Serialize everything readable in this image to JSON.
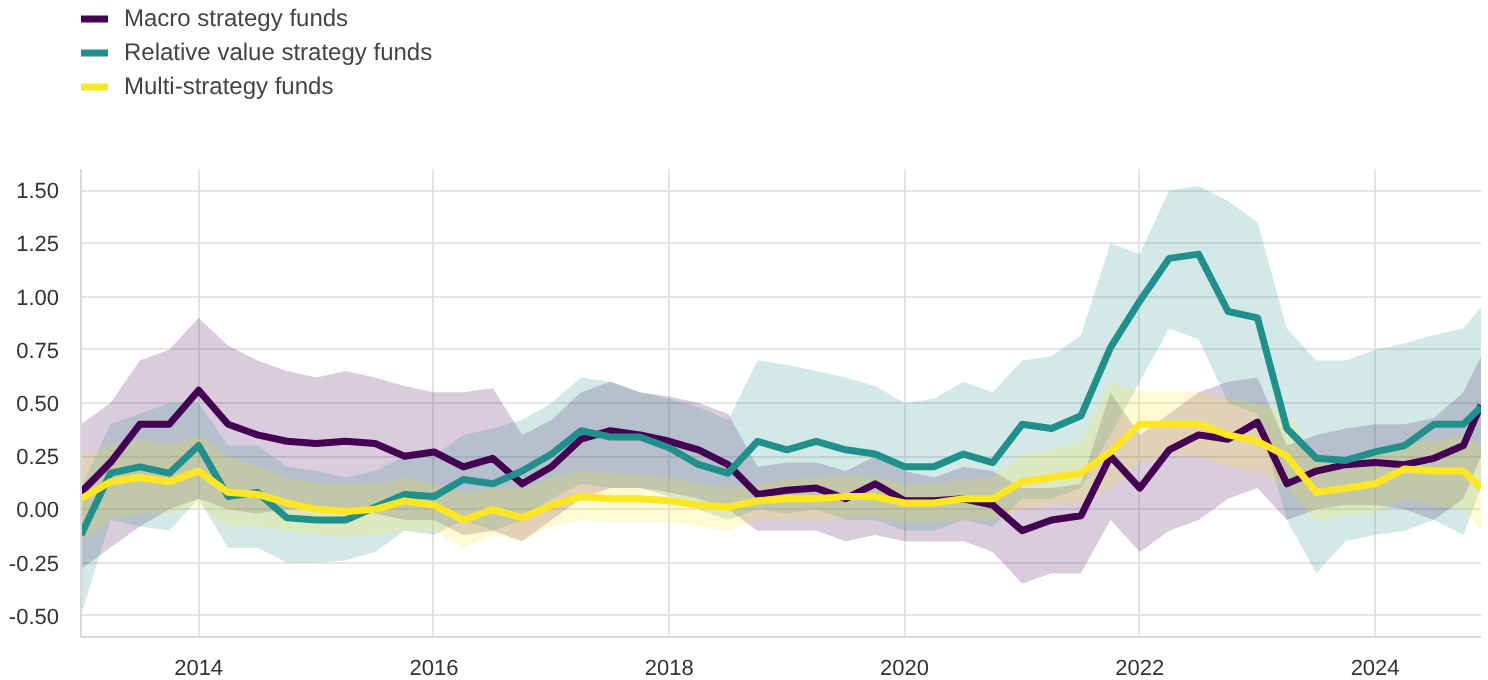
{
  "chart_data": {
    "type": "line",
    "x": [
      2013.0,
      2013.25,
      2013.5,
      2013.75,
      2014.0,
      2014.25,
      2014.5,
      2014.75,
      2015.0,
      2015.25,
      2015.5,
      2015.75,
      2016.0,
      2016.25,
      2016.5,
      2016.75,
      2017.0,
      2017.25,
      2017.5,
      2017.75,
      2018.0,
      2018.25,
      2018.5,
      2018.75,
      2019.0,
      2019.25,
      2019.5,
      2019.75,
      2020.0,
      2020.25,
      2020.5,
      2020.75,
      2021.0,
      2021.25,
      2021.5,
      2021.75,
      2022.0,
      2022.25,
      2022.5,
      2022.75,
      2023.0,
      2023.25,
      2023.5,
      2023.75,
      2024.0,
      2024.25,
      2024.5,
      2024.75,
      2024.9
    ],
    "series": [
      {
        "name": "Macro strategy funds",
        "color": "#440154",
        "values": [
          0.08,
          0.22,
          0.4,
          0.4,
          0.56,
          0.4,
          0.35,
          0.32,
          0.31,
          0.32,
          0.31,
          0.25,
          0.27,
          0.2,
          0.24,
          0.12,
          0.2,
          0.33,
          0.37,
          0.35,
          0.32,
          0.28,
          0.21,
          0.07,
          0.09,
          0.1,
          0.05,
          0.12,
          0.04,
          0.04,
          0.05,
          0.02,
          -0.1,
          -0.05,
          -0.03,
          0.25,
          0.1,
          0.28,
          0.35,
          0.33,
          0.41,
          0.12,
          0.18,
          0.21,
          0.22,
          0.21,
          0.24,
          0.3,
          0.49
        ],
        "upper": [
          0.4,
          0.5,
          0.7,
          0.75,
          0.9,
          0.77,
          0.7,
          0.65,
          0.62,
          0.65,
          0.62,
          0.58,
          0.55,
          0.55,
          0.57,
          0.35,
          0.42,
          0.55,
          0.6,
          0.55,
          0.53,
          0.5,
          0.45,
          0.2,
          0.22,
          0.22,
          0.18,
          0.25,
          0.18,
          0.15,
          0.2,
          0.18,
          0.1,
          0.1,
          0.12,
          0.55,
          0.35,
          0.45,
          0.55,
          0.6,
          0.62,
          0.3,
          0.35,
          0.38,
          0.4,
          0.4,
          0.43,
          0.55,
          0.72
        ],
        "lower": [
          -0.28,
          -0.18,
          -0.08,
          0.0,
          0.05,
          0.0,
          -0.02,
          0.0,
          0.0,
          0.0,
          -0.02,
          -0.05,
          -0.05,
          -0.12,
          -0.1,
          -0.15,
          -0.05,
          0.05,
          0.1,
          0.1,
          0.08,
          0.05,
          0.0,
          -0.1,
          -0.1,
          -0.1,
          -0.15,
          -0.12,
          -0.15,
          -0.15,
          -0.15,
          -0.2,
          -0.35,
          -0.3,
          -0.3,
          -0.05,
          -0.2,
          -0.1,
          -0.05,
          0.05,
          0.1,
          -0.05,
          0.0,
          0.02,
          0.02,
          0.0,
          -0.05,
          0.05,
          0.25
        ]
      },
      {
        "name": "Relative value strategy funds",
        "color": "#21908d",
        "values": [
          -0.12,
          0.17,
          0.2,
          0.17,
          0.3,
          0.06,
          0.08,
          -0.04,
          -0.05,
          -0.05,
          0.01,
          0.07,
          0.06,
          0.14,
          0.12,
          0.18,
          0.26,
          0.37,
          0.34,
          0.34,
          0.29,
          0.21,
          0.17,
          0.32,
          0.28,
          0.32,
          0.28,
          0.26,
          0.2,
          0.2,
          0.26,
          0.22,
          0.4,
          0.38,
          0.44,
          0.76,
          0.98,
          1.18,
          1.2,
          0.93,
          0.9,
          0.38,
          0.24,
          0.23,
          0.27,
          0.3,
          0.4,
          0.4,
          0.48
        ],
        "upper": [
          0.1,
          0.4,
          0.45,
          0.5,
          0.5,
          0.3,
          0.3,
          0.2,
          0.18,
          0.15,
          0.18,
          0.25,
          0.25,
          0.35,
          0.38,
          0.42,
          0.5,
          0.62,
          0.6,
          0.55,
          0.52,
          0.48,
          0.42,
          0.7,
          0.68,
          0.65,
          0.62,
          0.58,
          0.5,
          0.52,
          0.6,
          0.55,
          0.7,
          0.72,
          0.82,
          1.25,
          1.2,
          1.5,
          1.52,
          1.45,
          1.35,
          0.85,
          0.7,
          0.7,
          0.75,
          0.78,
          0.82,
          0.85,
          0.95
        ],
        "lower": [
          -0.5,
          -0.05,
          -0.08,
          -0.1,
          0.05,
          -0.18,
          -0.18,
          -0.25,
          -0.25,
          -0.24,
          -0.2,
          -0.1,
          -0.12,
          -0.05,
          -0.1,
          -0.05,
          0.05,
          0.12,
          0.1,
          0.1,
          0.06,
          0.0,
          -0.05,
          0.0,
          -0.02,
          0.0,
          -0.05,
          -0.05,
          -0.1,
          -0.1,
          -0.05,
          -0.08,
          0.05,
          0.05,
          0.1,
          0.35,
          0.6,
          0.85,
          0.8,
          0.5,
          0.45,
          -0.05,
          -0.3,
          -0.15,
          -0.12,
          -0.1,
          -0.05,
          -0.12,
          0.1
        ]
      },
      {
        "name": "Multi-strategy funds",
        "color": "#fde725",
        "values": [
          0.05,
          0.13,
          0.15,
          0.13,
          0.18,
          0.08,
          0.07,
          0.03,
          0.0,
          -0.01,
          0.0,
          0.04,
          0.02,
          -0.05,
          0.0,
          -0.04,
          0.02,
          0.06,
          0.05,
          0.05,
          0.04,
          0.02,
          0.01,
          0.04,
          0.05,
          0.05,
          0.06,
          0.06,
          0.03,
          0.03,
          0.05,
          0.05,
          0.13,
          0.15,
          0.17,
          0.27,
          0.4,
          0.4,
          0.4,
          0.35,
          0.32,
          0.25,
          0.08,
          0.1,
          0.12,
          0.19,
          0.18,
          0.18,
          0.1
        ],
        "upper": [
          0.25,
          0.3,
          0.33,
          0.3,
          0.35,
          0.25,
          0.2,
          0.15,
          0.12,
          0.12,
          0.12,
          0.15,
          0.12,
          0.08,
          0.1,
          0.1,
          0.15,
          0.18,
          0.17,
          0.16,
          0.15,
          0.12,
          0.1,
          0.12,
          0.14,
          0.15,
          0.16,
          0.15,
          0.12,
          0.12,
          0.14,
          0.15,
          0.25,
          0.28,
          0.32,
          0.6,
          0.55,
          0.55,
          0.55,
          0.52,
          0.5,
          0.45,
          0.25,
          0.22,
          0.25,
          0.32,
          0.32,
          0.35,
          0.3
        ],
        "lower": [
          -0.15,
          -0.05,
          -0.02,
          -0.02,
          0.02,
          -0.08,
          -0.08,
          -0.1,
          -0.12,
          -0.13,
          -0.12,
          -0.1,
          -0.1,
          -0.18,
          -0.12,
          -0.15,
          -0.08,
          -0.05,
          -0.06,
          -0.06,
          -0.06,
          -0.08,
          -0.1,
          -0.05,
          -0.05,
          -0.05,
          -0.04,
          -0.04,
          -0.06,
          -0.06,
          -0.05,
          -0.05,
          0.0,
          0.02,
          0.03,
          0.1,
          0.22,
          0.25,
          0.25,
          0.2,
          0.18,
          0.1,
          -0.05,
          -0.03,
          -0.02,
          0.05,
          0.02,
          0.0,
          -0.1
        ]
      }
    ],
    "xlim": [
      2013.0,
      2024.9
    ],
    "xticks": [
      2014,
      2016,
      2018,
      2020,
      2022,
      2024
    ],
    "ylim": [
      -0.6,
      1.6
    ],
    "yticks": [
      {
        "value": -0.5,
        "label": "-0.50"
      },
      {
        "value": -0.25,
        "label": "-0.25"
      },
      {
        "value": 0,
        "label": "0.00"
      },
      {
        "value": 0.25,
        "label": "0.25"
      },
      {
        "value": 0.5,
        "label": "0.50"
      },
      {
        "value": 0.75,
        "label": "0.75"
      },
      {
        "value": 1.0,
        "label": "1.00"
      },
      {
        "value": 1.25,
        "label": "1.25"
      },
      {
        "value": 1.5,
        "label": "1.50"
      }
    ],
    "grid": true,
    "legend": "top left",
    "line_style": "solid",
    "marker": "none"
  }
}
